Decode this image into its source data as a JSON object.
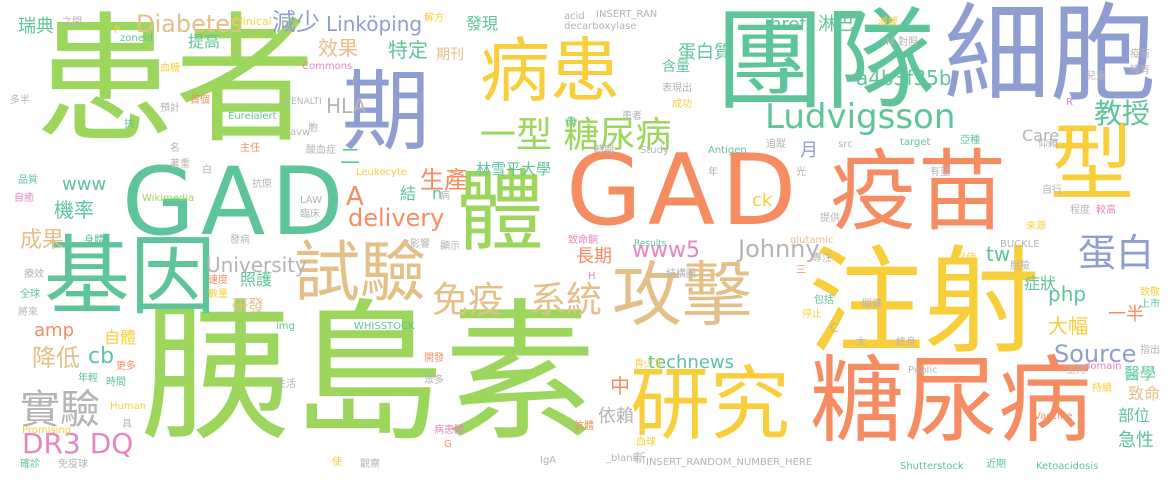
{
  "palette": {
    "green": "#9dd65c",
    "teal": "#5ec49a",
    "blue": "#8f9ed1",
    "orange": "#f68d62",
    "yellow": "#f8cf3a",
    "tan": "#e4c088",
    "pink": "#e685c0",
    "gray": "#b4b4b4"
  },
  "words": [
    {
      "text": "胰島素",
      "color": "green"
    },
    {
      "text": "患者",
      "color": "green"
    },
    {
      "text": "GAD",
      "color": "teal"
    },
    {
      "text": "GAD",
      "color": "orange"
    },
    {
      "text": "注射",
      "color": "yellow"
    },
    {
      "text": "團隊",
      "color": "teal"
    },
    {
      "text": "細胞",
      "color": "blue"
    },
    {
      "text": "攻擊",
      "color": "tan"
    },
    {
      "text": "疫苗",
      "color": "orange"
    },
    {
      "text": "病患",
      "color": "yellow"
    },
    {
      "text": "研究",
      "color": "yellow"
    },
    {
      "text": "糖尿病",
      "color": "orange"
    },
    {
      "text": "期",
      "color": "blue"
    },
    {
      "text": "基因",
      "color": "teal"
    },
    {
      "text": "體",
      "color": "green"
    },
    {
      "text": "型",
      "color": "yellow"
    },
    {
      "text": "試驗",
      "color": "tan"
    },
    {
      "text": "一型 糖尿病",
      "color": "green"
    },
    {
      "text": "免疫",
      "color": "tan"
    },
    {
      "text": "系統",
      "color": "tan"
    },
    {
      "text": "蛋白",
      "color": "blue"
    },
    {
      "text": "Ludvigsson",
      "color": "teal"
    },
    {
      "text": "實驗",
      "color": "gray"
    },
    {
      "text": "DR3 DQ",
      "color": "pink"
    },
    {
      "text": "Diabetes",
      "color": "tan"
    },
    {
      "text": "減少",
      "color": "blue"
    },
    {
      "text": "Linköping",
      "color": "blue"
    },
    {
      "text": "教授",
      "color": "teal"
    },
    {
      "text": "www5",
      "color": "pink"
    },
    {
      "text": "Johnny",
      "color": "gray"
    },
    {
      "text": "Source",
      "color": "blue"
    },
    {
      "text": "University",
      "color": "gray"
    },
    {
      "text": "delivery",
      "color": "orange"
    },
    {
      "text": "生產",
      "color": "orange"
    },
    {
      "text": "成果",
      "color": "tan"
    },
    {
      "text": "機率",
      "color": "teal"
    },
    {
      "text": "降低",
      "color": "tan"
    },
    {
      "text": "cb",
      "color": "teal"
    },
    {
      "text": "amp",
      "color": "orange"
    },
    {
      "text": "效果",
      "color": "tan"
    },
    {
      "text": "特定",
      "color": "teal"
    },
    {
      "text": "HLA",
      "color": "gray"
    },
    {
      "text": "a4b3f35b",
      "color": "teal"
    },
    {
      "text": "technews",
      "color": "teal"
    },
    {
      "text": "依賴",
      "color": "gray"
    },
    {
      "text": "長期",
      "color": "orange"
    },
    {
      "text": "林雪平大學",
      "color": "teal"
    },
    {
      "text": "蛋白質",
      "color": "teal"
    },
    {
      "text": "淋巴",
      "color": "teal"
    },
    {
      "text": "www",
      "color": "teal"
    },
    {
      "text": "php",
      "color": "teal"
    },
    {
      "text": "一半",
      "color": "orange"
    },
    {
      "text": "大幅",
      "color": "yellow"
    },
    {
      "text": "症狀",
      "color": "teal"
    },
    {
      "text": "tw",
      "color": "teal"
    },
    {
      "text": "Care",
      "color": "gray"
    },
    {
      "text": "ck",
      "color": "yellow"
    },
    {
      "text": "急性",
      "color": "teal"
    },
    {
      "text": "部位",
      "color": "teal"
    },
    {
      "text": "致命",
      "color": "tan"
    },
    {
      "text": "醫學",
      "color": "teal"
    },
    {
      "text": "中",
      "color": "orange"
    },
    {
      "text": "自體",
      "color": "yellow"
    },
    {
      "text": "照護",
      "color": "teal"
    },
    {
      "text": "研發",
      "color": "tan"
    },
    {
      "text": "提高",
      "color": "teal"
    },
    {
      "text": "期刊",
      "color": "tan"
    },
    {
      "text": "含量",
      "color": "teal"
    },
    {
      "text": "發現",
      "color": "teal"
    },
    {
      "text": "href",
      "color": "teal"
    },
    {
      "text": "瑞典",
      "color": "teal"
    },
    {
      "text": "acid",
      "color": "gray"
    },
    {
      "text": "decarboxylase",
      "color": "gray"
    },
    {
      "text": "INSERT_RAN",
      "color": "gray"
    },
    {
      "text": "INSERT_RANDOM_NUMBER_HERE",
      "color": "gray"
    },
    {
      "text": "Clinical",
      "color": "yellow"
    },
    {
      "text": "zoneid",
      "color": "teal"
    },
    {
      "text": "Commons",
      "color": "pink"
    },
    {
      "text": "FENALTI",
      "color": "gray"
    },
    {
      "text": "Eurelalert",
      "color": "teal"
    },
    {
      "text": "Leukocyte",
      "color": "yellow"
    },
    {
      "text": "Wikimedia",
      "color": "green"
    },
    {
      "text": "LAW",
      "color": "gray"
    },
    {
      "text": "Results",
      "color": "teal"
    },
    {
      "text": "glutamic",
      "color": "tan"
    },
    {
      "text": "BUCKLE",
      "color": "gray"
    },
    {
      "text": "WHISSTOCK",
      "color": "teal"
    },
    {
      "text": "Vaccine",
      "color": "orange"
    },
    {
      "text": "Shutterstock",
      "color": "teal"
    },
    {
      "text": "Ketoacidosis",
      "color": "teal"
    },
    {
      "text": "Promising",
      "color": "yellow"
    },
    {
      "text": "Human",
      "color": "yellow"
    },
    {
      "text": "IgA",
      "color": "gray"
    },
    {
      "text": "_blank",
      "color": "gray"
    },
    {
      "text": "Study",
      "color": "gray"
    },
    {
      "text": "Antigen",
      "color": "teal"
    },
    {
      "text": "target",
      "color": "teal"
    },
    {
      "text": "src",
      "color": "gray"
    },
    {
      "text": "avw",
      "color": "gray"
    },
    {
      "text": "img",
      "color": "teal"
    },
    {
      "text": "domain",
      "color": "pink"
    },
    {
      "text": "Public",
      "color": "gray"
    },
    {
      "text": "二",
      "color": "teal"
    },
    {
      "text": "結",
      "color": "teal"
    },
    {
      "text": "A",
      "color": "orange"
    },
    {
      "text": "n",
      "color": "teal"
    },
    {
      "text": "月",
      "color": "blue"
    },
    {
      "text": "之間",
      "color": "gray"
    },
    {
      "text": "解方",
      "color": "yellow"
    },
    {
      "text": "減緩",
      "color": "yellow"
    },
    {
      "text": "對照",
      "color": "gray"
    },
    {
      "text": "疫苗",
      "color": "gray"
    },
    {
      "text": "擁有",
      "color": "gray"
    },
    {
      "text": "兒童",
      "color": "gray"
    },
    {
      "text": "血糖",
      "color": "yellow"
    },
    {
      "text": "首個",
      "color": "orange"
    },
    {
      "text": "預計",
      "color": "gray"
    },
    {
      "text": "多半",
      "color": "gray"
    },
    {
      "text": "表現出",
      "color": "gray"
    },
    {
      "text": "成功",
      "color": "yellow"
    },
    {
      "text": "歲",
      "color": "teal"
    },
    {
      "text": "追蹤",
      "color": "gray"
    },
    {
      "text": "亞種",
      "color": "teal"
    },
    {
      "text": "仰賴",
      "color": "gray"
    },
    {
      "text": "患者",
      "color": "gray"
    },
    {
      "text": "抗",
      "color": "teal"
    },
    {
      "text": "名",
      "color": "gray"
    },
    {
      "text": "主任",
      "color": "orange"
    },
    {
      "text": "胞",
      "color": "gray"
    },
    {
      "text": "酸血症",
      "color": "gray"
    },
    {
      "text": "時期",
      "color": "gray"
    },
    {
      "text": "病",
      "color": "gray"
    },
    {
      "text": "年",
      "color": "gray"
    },
    {
      "text": "光",
      "color": "gray"
    },
    {
      "text": "有望",
      "color": "gray"
    },
    {
      "text": "自行",
      "color": "gray"
    },
    {
      "text": "品質",
      "color": "teal"
    },
    {
      "text": "自癒",
      "color": "pink"
    },
    {
      "text": "抗原",
      "color": "gray"
    },
    {
      "text": "白",
      "color": "gray"
    },
    {
      "text": "著重",
      "color": "gray"
    },
    {
      "text": "程度",
      "color": "gray"
    },
    {
      "text": "較高",
      "color": "pink"
    },
    {
      "text": "提供",
      "color": "gray"
    },
    {
      "text": "來源",
      "color": "yellow"
    },
    {
      "text": "致命酮",
      "color": "pink"
    },
    {
      "text": "發病",
      "color": "gray"
    },
    {
      "text": "影響",
      "color": "gray"
    },
    {
      "text": "臨床",
      "color": "gray"
    },
    {
      "text": "顯示",
      "color": "gray"
    },
    {
      "text": "專注",
      "color": "gray"
    },
    {
      "text": "促使",
      "color": "yellow"
    },
    {
      "text": "身體",
      "color": "teal"
    },
    {
      "text": "療效",
      "color": "gray"
    },
    {
      "text": "全球",
      "color": "teal"
    },
    {
      "text": "速度",
      "color": "orange"
    },
    {
      "text": "數量",
      "color": "yellow"
    },
    {
      "text": "將來",
      "color": "gray"
    },
    {
      "text": "結構圖",
      "color": "gray"
    },
    {
      "text": "脫險",
      "color": "gray"
    },
    {
      "text": "致敬",
      "color": "yellow"
    },
    {
      "text": "上市",
      "color": "teal"
    },
    {
      "text": "包括",
      "color": "teal"
    },
    {
      "text": "關鍵",
      "color": "gray"
    },
    {
      "text": "停止",
      "color": "yellow"
    },
    {
      "text": "太",
      "color": "gray"
    },
    {
      "text": "終身",
      "color": "gray"
    },
    {
      "text": "開發",
      "color": "orange"
    },
    {
      "text": "青少年",
      "color": "yellow"
    },
    {
      "text": "主持",
      "color": "gray"
    },
    {
      "text": "指出",
      "color": "gray"
    },
    {
      "text": "更多",
      "color": "orange"
    },
    {
      "text": "時間",
      "color": "teal"
    },
    {
      "text": "年輕",
      "color": "teal"
    },
    {
      "text": "具",
      "color": "gray"
    },
    {
      "text": "生活",
      "color": "gray"
    },
    {
      "text": "眾多",
      "color": "gray"
    },
    {
      "text": "持續",
      "color": "yellow"
    },
    {
      "text": "病患體",
      "color": "pink"
    },
    {
      "text": "抗體",
      "color": "orange"
    },
    {
      "text": "血球",
      "color": "yellow"
    },
    {
      "text": "近期",
      "color": "teal"
    },
    {
      "text": "確診",
      "color": "teal"
    },
    {
      "text": "免疫球",
      "color": "gray"
    },
    {
      "text": "使",
      "color": "yellow"
    },
    {
      "text": "觀察",
      "color": "gray"
    },
    {
      "text": "新",
      "color": "gray"
    },
    {
      "text": "三",
      "color": "orange"
    },
    {
      "text": "P",
      "color": "yellow"
    },
    {
      "text": "J",
      "color": "gray"
    },
    {
      "text": "M",
      "color": "gray"
    },
    {
      "text": "R",
      "color": "pink"
    },
    {
      "text": "H",
      "color": "pink"
    },
    {
      "text": "G",
      "color": "orange"
    },
    {
      "text": "C",
      "color": "gray"
    }
  ]
}
